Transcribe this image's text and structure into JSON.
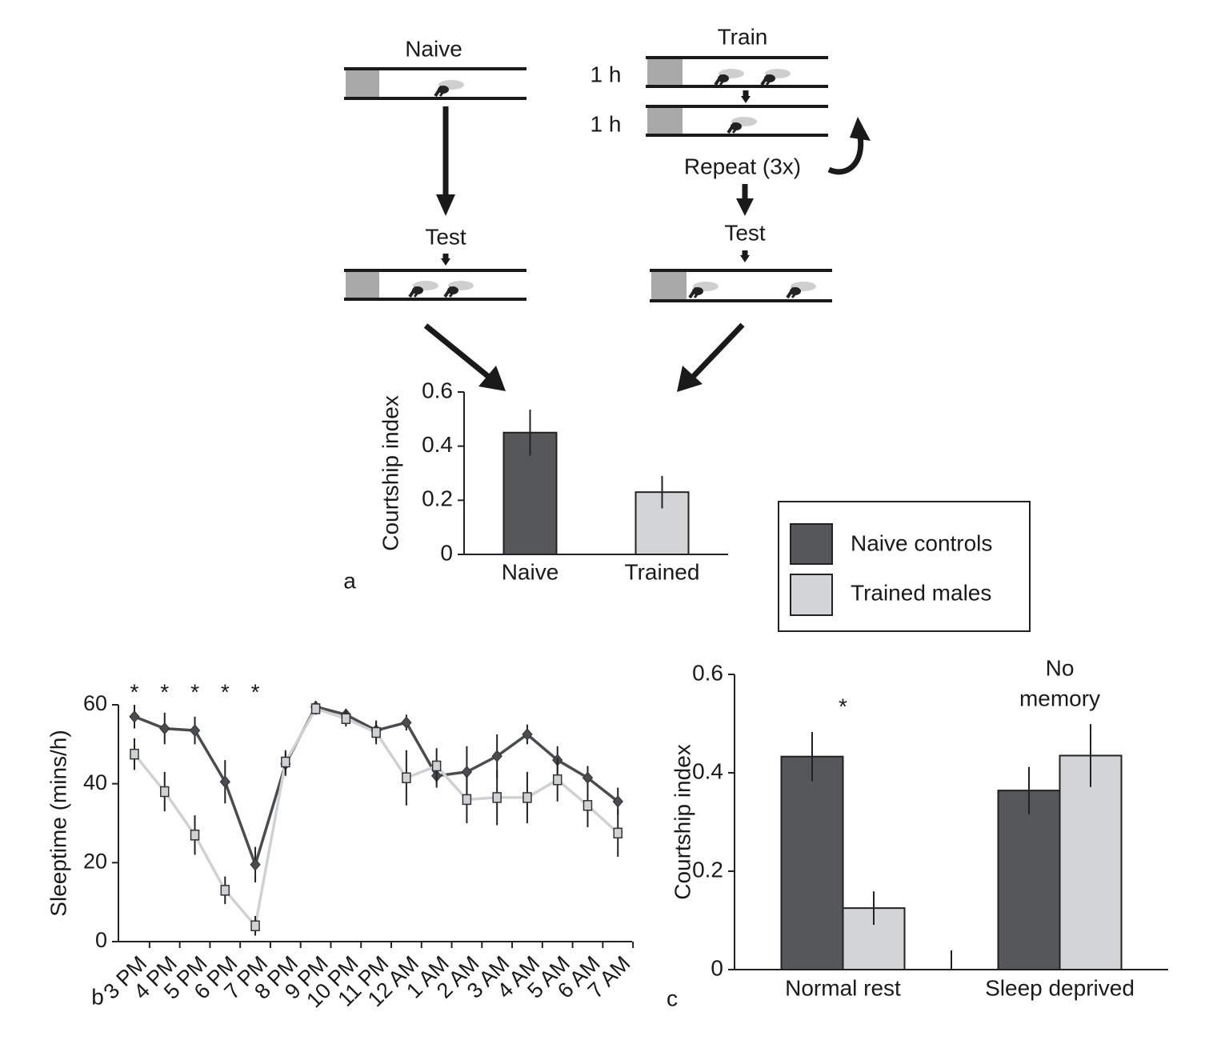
{
  "diagram": {
    "naive_label": "Naive",
    "train_label": "Train",
    "train_steps": [
      "1 h",
      "1 h"
    ],
    "repeat_label": "Repeat (3x)",
    "test_labels": [
      "Test",
      "Test"
    ]
  },
  "chart_data": [
    {
      "type": "bar",
      "panel_label": "a",
      "y_label": "Courtship index",
      "categories": [
        "Naive",
        "Trained"
      ],
      "values": [
        0.45,
        0.23
      ],
      "errors": [
        0.085,
        0.06
      ],
      "colors": [
        "#555759",
        "#d3d4d5"
      ],
      "ylim": [
        0,
        0.6
      ],
      "yticks": [
        0,
        0.2,
        0.4,
        0.6
      ]
    },
    {
      "type": "line",
      "panel_label": "b",
      "y_label": "Sleeptime (mins/h)",
      "categories": [
        "3 PM",
        "4 PM",
        "5 PM",
        "6 PM",
        "7 PM",
        "8 PM",
        "9 PM",
        "10 PM",
        "11 PM",
        "12 AM",
        "1 AM",
        "2 AM",
        "3 AM",
        "4 AM",
        "5 AM",
        "6 AM",
        "7 AM"
      ],
      "significance": [
        "*",
        "*",
        "*",
        "*",
        "*",
        null,
        null,
        null,
        null,
        null,
        null,
        null,
        null,
        null,
        null,
        null,
        null
      ],
      "series": [
        {
          "color": "#4b4c4e",
          "marker": "diamond",
          "values": [
            57,
            54,
            53.5,
            40.5,
            19.5,
            45,
            59.5,
            57.5,
            53.5,
            55.5,
            42,
            43,
            47,
            52.5,
            46,
            41.5,
            35.5
          ],
          "errors": [
            3,
            4,
            3.5,
            5.5,
            4.5,
            3,
            1.5,
            1.5,
            2.5,
            2,
            3,
            6.5,
            5.5,
            2.5,
            3.5,
            3,
            3.5
          ]
        },
        {
          "color": "#d0d1d2",
          "marker": "square",
          "values": [
            47.5,
            38,
            27,
            13,
            4,
            45.5,
            59,
            56.5,
            53,
            41.5,
            44.5,
            36,
            36.5,
            36.5,
            41,
            34.5,
            27.5
          ],
          "errors": [
            4,
            5,
            5,
            3.5,
            2.5,
            3,
            1.5,
            2,
            3,
            7,
            4.5,
            6,
            7,
            6.5,
            5.5,
            5.5,
            6
          ]
        }
      ],
      "ylim": [
        0,
        60
      ],
      "yticks": [
        0,
        20,
        40,
        60
      ]
    },
    {
      "type": "grouped_bar",
      "panel_label": "c",
      "y_label": "Courtship index",
      "categories": [
        "Normal rest",
        "Sleep deprived"
      ],
      "annotations": [
        [
          "*"
        ],
        [
          "No",
          "memory"
        ]
      ],
      "series": [
        {
          "name": "Naive controls",
          "color": "#555759",
          "values": [
            0.433,
            0.364
          ],
          "errors": [
            0.05,
            0.048
          ]
        },
        {
          "name": "Trained males",
          "color": "#d3d4d5",
          "values": [
            0.125,
            0.435
          ],
          "errors": [
            0.034,
            0.064
          ]
        }
      ],
      "ylim": [
        0,
        0.6
      ],
      "yticks": [
        0,
        0.2,
        0.4,
        0.6
      ]
    }
  ]
}
